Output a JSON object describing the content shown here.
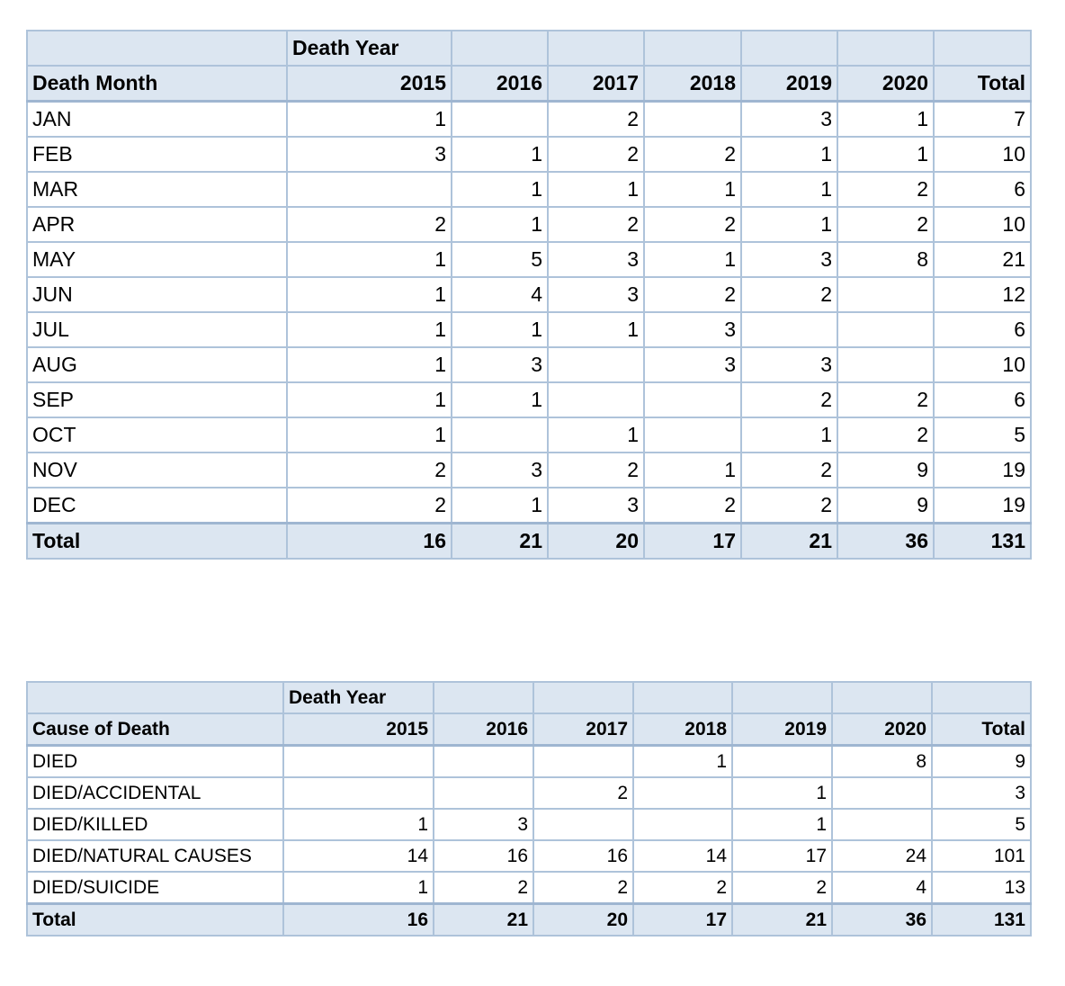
{
  "table1": {
    "group_label": "Death Year",
    "row_header": "Death Month",
    "years": [
      "2015",
      "2016",
      "2017",
      "2018",
      "2019",
      "2020"
    ],
    "total_header": "Total",
    "rows": [
      {
        "label": "JAN",
        "cells": [
          "1",
          "",
          "2",
          "",
          "3",
          "1"
        ],
        "total": "7"
      },
      {
        "label": "FEB",
        "cells": [
          "3",
          "1",
          "2",
          "2",
          "1",
          "1"
        ],
        "total": "10"
      },
      {
        "label": "MAR",
        "cells": [
          "",
          "1",
          "1",
          "1",
          "1",
          "2"
        ],
        "total": "6"
      },
      {
        "label": "APR",
        "cells": [
          "2",
          "1",
          "2",
          "2",
          "1",
          "2"
        ],
        "total": "10"
      },
      {
        "label": "MAY",
        "cells": [
          "1",
          "5",
          "3",
          "1",
          "3",
          "8"
        ],
        "total": "21"
      },
      {
        "label": "JUN",
        "cells": [
          "1",
          "4",
          "3",
          "2",
          "2",
          ""
        ],
        "total": "12"
      },
      {
        "label": "JUL",
        "cells": [
          "1",
          "1",
          "1",
          "3",
          "",
          ""
        ],
        "total": "6"
      },
      {
        "label": "AUG",
        "cells": [
          "1",
          "3",
          "",
          "3",
          "3",
          ""
        ],
        "total": "10"
      },
      {
        "label": "SEP",
        "cells": [
          "1",
          "1",
          "",
          "",
          "2",
          "2"
        ],
        "total": "6"
      },
      {
        "label": "OCT",
        "cells": [
          "1",
          "",
          "1",
          "",
          "1",
          "2"
        ],
        "total": "5"
      },
      {
        "label": "NOV",
        "cells": [
          "2",
          "3",
          "2",
          "1",
          "2",
          "9"
        ],
        "total": "19"
      },
      {
        "label": "DEC",
        "cells": [
          "2",
          "1",
          "3",
          "2",
          "2",
          "9"
        ],
        "total": "19"
      }
    ],
    "total_row": {
      "label": "Total",
      "cells": [
        "16",
        "21",
        "20",
        "17",
        "21",
        "36"
      ],
      "total": "131"
    }
  },
  "table2": {
    "group_label": "Death Year",
    "row_header": "Cause of Death",
    "years": [
      "2015",
      "2016",
      "2017",
      "2018",
      "2019",
      "2020"
    ],
    "total_header": "Total",
    "rows": [
      {
        "label": "DIED",
        "cells": [
          "",
          "",
          "",
          "1",
          "",
          "8"
        ],
        "total": "9"
      },
      {
        "label": "DIED/ACCIDENTAL",
        "cells": [
          "",
          "",
          "2",
          "",
          "1",
          ""
        ],
        "total": "3"
      },
      {
        "label": "DIED/KILLED",
        "cells": [
          "1",
          "3",
          "",
          "",
          "1",
          ""
        ],
        "total": "5"
      },
      {
        "label": "DIED/NATURAL CAUSES",
        "cells": [
          "14",
          "16",
          "16",
          "14",
          "17",
          "24"
        ],
        "total": "101"
      },
      {
        "label": "DIED/SUICIDE",
        "cells": [
          "1",
          "2",
          "2",
          "2",
          "2",
          "4"
        ],
        "total": "13"
      }
    ],
    "total_row": {
      "label": "Total",
      "cells": [
        "16",
        "21",
        "20",
        "17",
        "21",
        "36"
      ],
      "total": "131"
    }
  }
}
